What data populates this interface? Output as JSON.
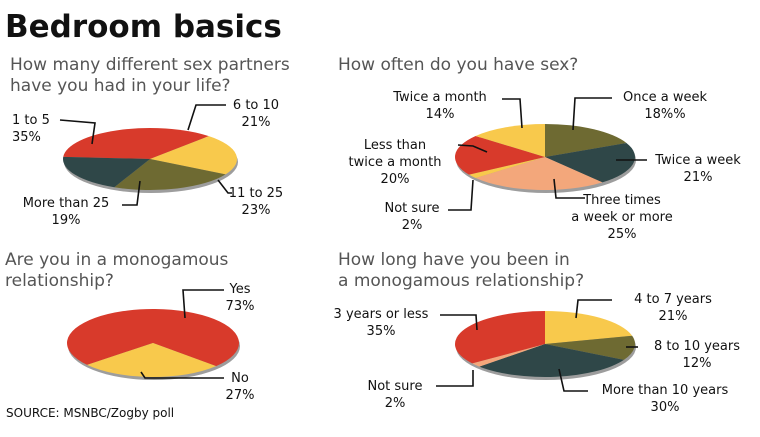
{
  "title": "Bedroom basics",
  "source": "SOURCE: MSNBC/Zogby poll",
  "colors": {
    "red": "#D83A2B",
    "yellow": "#F8C94C",
    "olive": "#6E6A32",
    "slate": "#2F4748",
    "peach": "#F3A77B",
    "shadow": "#9D9D9D"
  },
  "chart_data": [
    {
      "type": "pie",
      "title": "How many different sex partners have you had in your life?",
      "title_lines": [
        "How many different sex partners",
        "have you had in your life?"
      ],
      "slices": [
        {
          "label": "1 to 5",
          "value": 35,
          "value_text": "35%",
          "color": "red"
        },
        {
          "label": "6 to 10",
          "value": 21,
          "value_text": "21%",
          "color": "yellow"
        },
        {
          "label": "11 to 25",
          "value": 23,
          "value_text": "23%",
          "color": "olive"
        },
        {
          "label": "More than 25",
          "value": 19,
          "value_text": "19%",
          "color": "slate"
        }
      ]
    },
    {
      "type": "pie",
      "title": "How often do you have sex?",
      "title_lines": [
        "How often do you have sex?"
      ],
      "slices": [
        {
          "label": "Once a week",
          "value": 18,
          "value_text": "18%%",
          "color": "olive"
        },
        {
          "label": "Twice a week",
          "value": 21,
          "value_text": "21%",
          "color": "slate"
        },
        {
          "label": "Three times a week or more",
          "label_lines": [
            "Three times",
            "a week or more"
          ],
          "value": 25,
          "value_text": "25%",
          "color": "peach"
        },
        {
          "label": "Not sure",
          "value": 2,
          "value_text": "2%",
          "color": "yellow"
        },
        {
          "label": "Less than twice a month",
          "label_lines": [
            "Less than",
            "twice a month"
          ],
          "value": 20,
          "value_text": "20%",
          "color": "red"
        },
        {
          "label": "Twice a month",
          "value": 14,
          "value_text": "14%",
          "color": "yellow"
        }
      ]
    },
    {
      "type": "pie",
      "title": "Are you in a monogamous relationship?",
      "title_lines": [
        "Are you in a monogamous",
        "relationship?"
      ],
      "slices": [
        {
          "label": "Yes",
          "value": 73,
          "value_text": "73%",
          "color": "red"
        },
        {
          "label": "No",
          "value": 27,
          "value_text": "27%",
          "color": "yellow"
        }
      ]
    },
    {
      "type": "pie",
      "title": "How long have you been in a monogamous relationship?",
      "title_lines": [
        "How long have you been in",
        "a monogamous relationship?"
      ],
      "slices": [
        {
          "label": "4 to 7 years",
          "value": 21,
          "value_text": "21%",
          "color": "yellow"
        },
        {
          "label": "8 to 10 years",
          "value": 12,
          "value_text": "12%",
          "color": "olive"
        },
        {
          "label": "More than 10 years",
          "value": 30,
          "value_text": "30%",
          "color": "slate"
        },
        {
          "label": "Not sure",
          "value": 2,
          "value_text": "2%",
          "color": "peach"
        },
        {
          "label": "3 years or less",
          "value": 35,
          "value_text": "35%",
          "color": "red"
        }
      ]
    }
  ]
}
